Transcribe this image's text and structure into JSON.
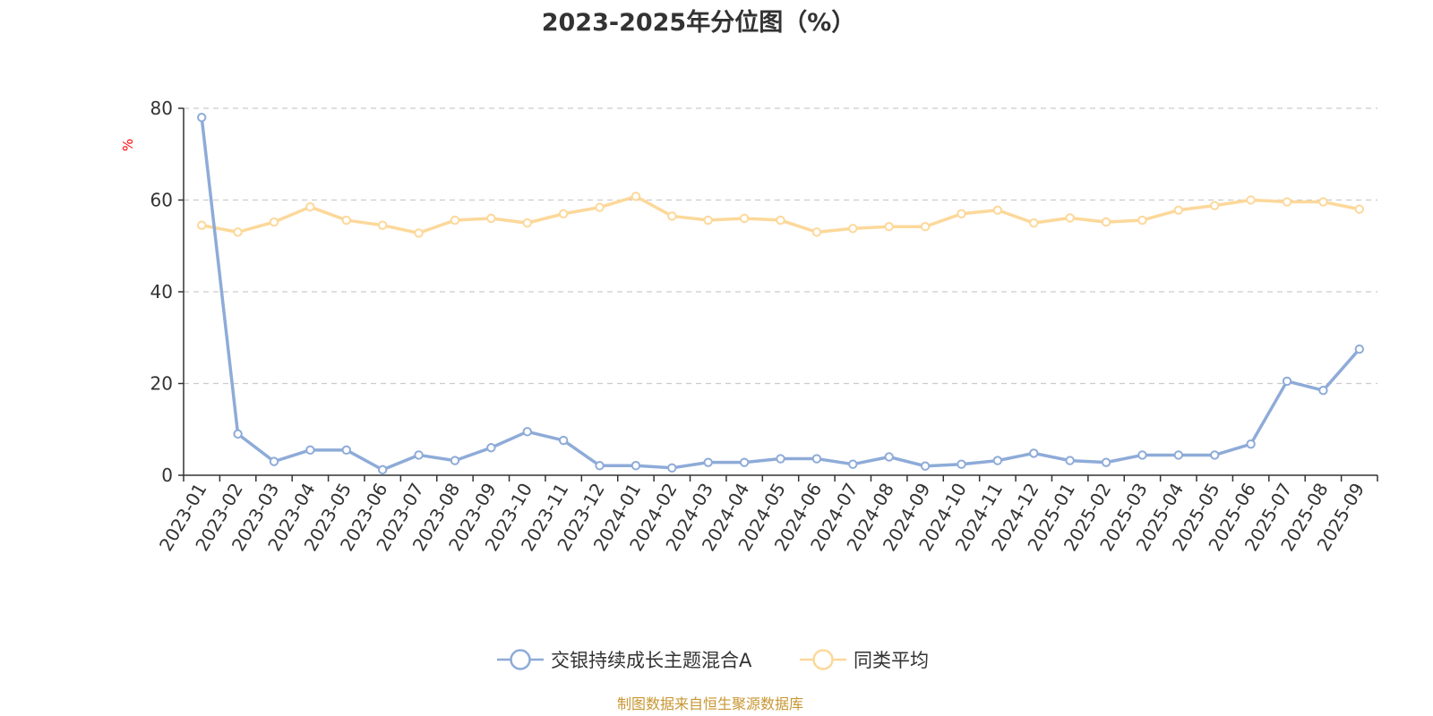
{
  "chart_data": {
    "type": "line",
    "title": "2023-2025年分位图（%）",
    "ylabel": "%",
    "ylim": [
      0,
      80
    ],
    "yticks": [
      "0",
      "20",
      "40",
      "60",
      "80"
    ],
    "grid": true,
    "legend_position": "bottom-center",
    "categories": [
      "2023-01",
      "2023-02",
      "2023-03",
      "2023-04",
      "2023-05",
      "2023-06",
      "2023-07",
      "2023-08",
      "2023-09",
      "2023-10",
      "2023-11",
      "2023-12",
      "2024-01",
      "2024-02",
      "2024-03",
      "2024-04",
      "2024-05",
      "2024-06",
      "2024-07",
      "2024-08",
      "2024-09",
      "2024-10",
      "2024-11",
      "2024-12",
      "2025-01",
      "2025-02",
      "2025-03",
      "2025-04",
      "2025-05",
      "2025-06",
      "2025-07",
      "2025-08",
      "2025-09"
    ],
    "series": [
      {
        "name": "交银持续成长主题混合A",
        "color": "#8eabd8",
        "values": [
          78,
          9,
          3,
          5.5,
          5.5,
          1.2,
          4.4,
          3.2,
          6,
          9.5,
          7.6,
          2.1,
          2.1,
          1.6,
          2.8,
          2.8,
          3.6,
          3.6,
          2.4,
          4,
          2,
          2.4,
          3.2,
          4.8,
          3.2,
          2.8,
          4.4,
          4.4,
          4.4,
          6.8,
          20.5,
          18.5,
          27.5
        ]
      },
      {
        "name": "同类平均",
        "color": "#fcd89a",
        "values": [
          54.5,
          53,
          55.2,
          58.5,
          55.6,
          54.5,
          52.8,
          55.6,
          56,
          55,
          57,
          58.4,
          60.8,
          56.5,
          55.6,
          56,
          55.6,
          53,
          53.8,
          54.2,
          54.2,
          57,
          57.8,
          55,
          56.1,
          55.2,
          55.6,
          57.8,
          58.8,
          60,
          59.6,
          59.6,
          58
        ]
      }
    ]
  },
  "footer": {
    "source_text": "制图数据来自恒生聚源数据库",
    "source_color": "#c89632"
  }
}
